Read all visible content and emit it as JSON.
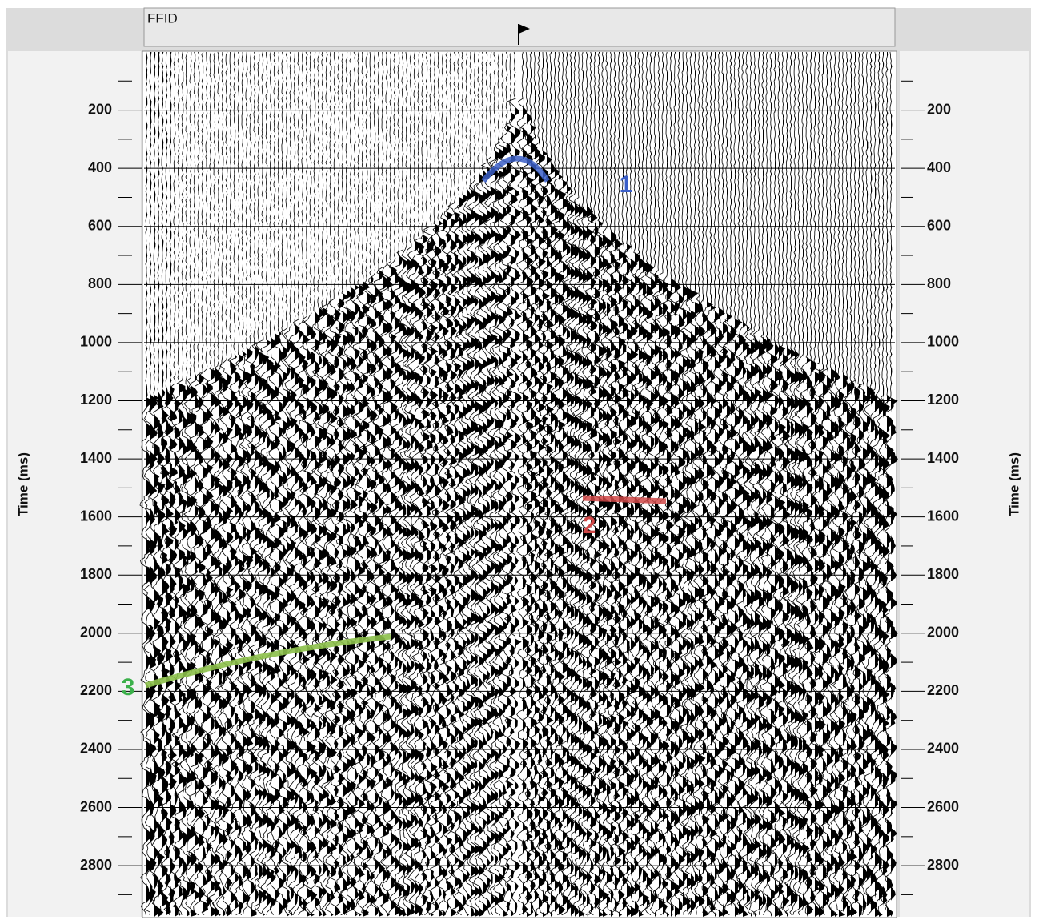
{
  "chart_data": {
    "type": "seismic",
    "header_label": "FFID",
    "y_label": "Time (ms)",
    "ylim": [
      0,
      2976
    ],
    "yticks": [
      200,
      400,
      600,
      800,
      1000,
      1200,
      1400,
      1600,
      1800,
      2000,
      2200,
      2400,
      2600,
      2800
    ],
    "grid": true,
    "annotations": [
      {
        "text": "1",
        "color": "#3b5fc8"
      },
      {
        "text": "2",
        "color": "#d04848"
      },
      {
        "text": "3",
        "color": "#3bb04a"
      }
    ]
  }
}
